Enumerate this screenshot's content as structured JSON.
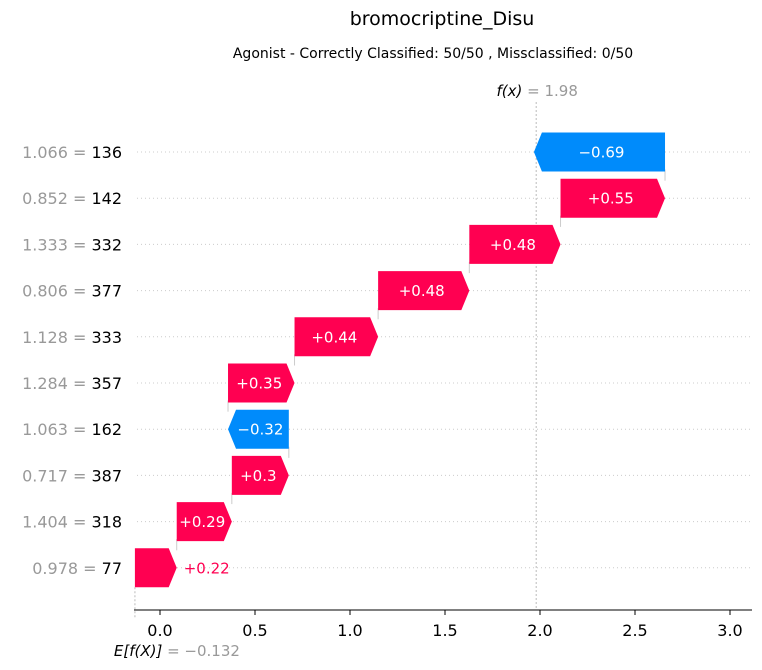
{
  "chart_data": {
    "type": "waterfall",
    "title": "bromocriptine_Disu",
    "subtitle": "Agonist - Correctly Classified: 50/50 , Missclassified: 0/50",
    "xlim": [
      -0.1,
      3.1
    ],
    "x_ticks": [
      0.0,
      0.5,
      1.0,
      1.5,
      2.0,
      2.5,
      3.0
    ],
    "x_tick_labels": [
      "0.0",
      "0.5",
      "1.0",
      "1.5",
      "2.0",
      "2.5",
      "3.0"
    ],
    "base_value": -0.132,
    "base_label": "E[f(X)]",
    "base_value_text": "= −0.132",
    "output_value": 1.98,
    "output_label": "f(x)",
    "output_value_text": "= 1.98",
    "features": [
      {
        "value": "1.066",
        "name": "136",
        "contribution": -0.69,
        "label": "−0.69"
      },
      {
        "value": "0.852",
        "name": "142",
        "contribution": 0.55,
        "label": "+0.55"
      },
      {
        "value": "1.333",
        "name": "332",
        "contribution": 0.48,
        "label": "+0.48"
      },
      {
        "value": "0.806",
        "name": "377",
        "contribution": 0.48,
        "label": "+0.48"
      },
      {
        "value": "1.128",
        "name": "333",
        "contribution": 0.44,
        "label": "+0.44"
      },
      {
        "value": "1.284",
        "name": "357",
        "contribution": 0.35,
        "label": "+0.35"
      },
      {
        "value": "1.063",
        "name": "162",
        "contribution": -0.32,
        "label": "−0.32"
      },
      {
        "value": "0.717",
        "name": "387",
        "contribution": 0.3,
        "label": "+0.3"
      },
      {
        "value": "1.404",
        "name": "318",
        "contribution": 0.29,
        "label": "+0.29"
      },
      {
        "value": "0.978",
        "name": "77",
        "contribution": 0.22,
        "label": "+0.22"
      }
    ],
    "colors": {
      "positive": "#ff0051",
      "negative": "#008bfb",
      "muted": "#999999",
      "grid": "#cccccc"
    }
  }
}
